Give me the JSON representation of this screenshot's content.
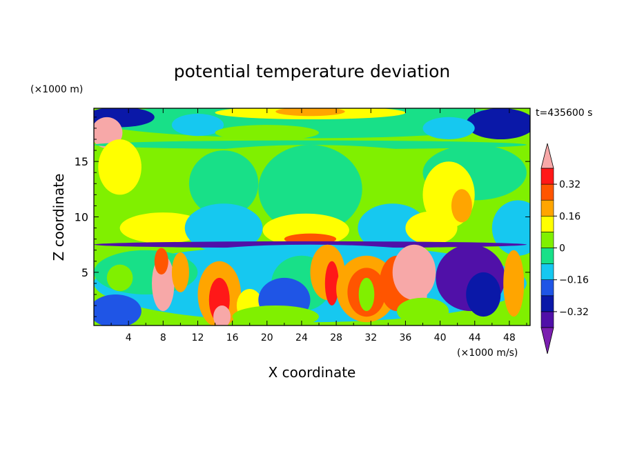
{
  "chart_data": {
    "type": "heatmap",
    "title": "potential temperature deviation",
    "xlabel": "X coordinate",
    "ylabel": "Z coordinate",
    "x_unit": "(×1000 m/s)",
    "y_unit": "(×1000 m)",
    "time_label": "t=435600 s",
    "xlim": [
      0,
      50.4
    ],
    "ylim": [
      0.2,
      19.8
    ],
    "x_ticks": [
      {
        "value": 4,
        "label": "4"
      },
      {
        "value": 8,
        "label": "8"
      },
      {
        "value": 12,
        "label": "12"
      },
      {
        "value": 16,
        "label": "16"
      },
      {
        "value": 20,
        "label": "20"
      },
      {
        "value": 24,
        "label": "24"
      },
      {
        "value": 28,
        "label": "28"
      },
      {
        "value": 32,
        "label": "32"
      },
      {
        "value": 36,
        "label": "36"
      },
      {
        "value": 40,
        "label": "40"
      },
      {
        "value": 44,
        "label": "44"
      },
      {
        "value": 48,
        "label": "48"
      }
    ],
    "y_ticks": [
      {
        "value": 5,
        "label": "5"
      },
      {
        "value": 10,
        "label": "10"
      },
      {
        "value": 15,
        "label": "15"
      }
    ],
    "colorbar": {
      "levels": [
        -0.4,
        -0.32,
        -0.24,
        -0.16,
        -0.08,
        0,
        0.08,
        0.16,
        0.24,
        0.32,
        0.4
      ],
      "colors": [
        "#7b1fb0",
        "#5010a8",
        "#0a18a8",
        "#1f55e6",
        "#16c8f0",
        "#18e088",
        "#80f000",
        "#ffff00",
        "#ffa500",
        "#ff5500",
        "#ff1818",
        "#f7a8a8"
      ],
      "tick_labels": [
        {
          "value": -0.32,
          "label": "−0.32"
        },
        {
          "value": -0.16,
          "label": "−0.16"
        },
        {
          "value": 0,
          "label": "0"
        },
        {
          "value": 0.16,
          "label": "0.16"
        },
        {
          "value": 0.32,
          "label": "0.32"
        }
      ]
    },
    "field_blobs": [
      {
        "x": 25,
        "z": 18.7,
        "rx": 25,
        "rz": 1.6,
        "v": -0.02
      },
      {
        "x": 25,
        "z": 19.4,
        "rx": 11,
        "rz": 0.6,
        "v": 0.14
      },
      {
        "x": 25,
        "z": 19.5,
        "rx": 4,
        "rz": 0.4,
        "v": 0.22
      },
      {
        "x": 3,
        "z": 19.0,
        "rx": 4,
        "rz": 0.9,
        "v": -0.25
      },
      {
        "x": 47,
        "z": 18.4,
        "rx": 4,
        "rz": 1.4,
        "v": -0.3
      },
      {
        "x": 41,
        "z": 18.0,
        "rx": 3,
        "rz": 1.0,
        "v": -0.15
      },
      {
        "x": 12,
        "z": 18.3,
        "rx": 3,
        "rz": 1.0,
        "v": -0.15
      },
      {
        "x": 20,
        "z": 17.6,
        "rx": 6,
        "rz": 0.7,
        "v": 0.06
      },
      {
        "x": 1.5,
        "z": 17.6,
        "rx": 1.8,
        "rz": 1.4,
        "v": 0.45
      },
      {
        "x": 25,
        "z": 16.5,
        "rx": 25,
        "rz": 0.4,
        "v": -0.08
      },
      {
        "x": 25,
        "z": 12,
        "rx": 25,
        "rz": 4.5,
        "v": 0.06
      },
      {
        "x": 25,
        "z": 12.5,
        "rx": 6,
        "rz": 4.0,
        "v": -0.02
      },
      {
        "x": 44,
        "z": 14,
        "rx": 6,
        "rz": 2.5,
        "v": -0.01
      },
      {
        "x": 15,
        "z": 13,
        "rx": 4,
        "rz": 3,
        "v": -0.01
      },
      {
        "x": 3,
        "z": 14.5,
        "rx": 2.5,
        "rz": 2.5,
        "v": 0.1
      },
      {
        "x": 41,
        "z": 12,
        "rx": 3,
        "rz": 3,
        "v": 0.12
      },
      {
        "x": 42.5,
        "z": 11,
        "rx": 1.2,
        "rz": 1.5,
        "v": 0.18
      },
      {
        "x": 8,
        "z": 9,
        "rx": 5,
        "rz": 1.4,
        "v": 0.14
      },
      {
        "x": 24.5,
        "z": 8.8,
        "rx": 5,
        "rz": 1.5,
        "v": 0.15
      },
      {
        "x": 25,
        "z": 8.0,
        "rx": 3,
        "rz": 0.5,
        "v": 0.24
      },
      {
        "x": 15,
        "z": 9,
        "rx": 4.5,
        "rz": 2.2,
        "v": -0.12
      },
      {
        "x": 34.5,
        "z": 9,
        "rx": 4,
        "rz": 2.2,
        "v": -0.12
      },
      {
        "x": 49,
        "z": 9,
        "rx": 3,
        "rz": 2.5,
        "v": -0.12
      },
      {
        "x": 39,
        "z": 9,
        "rx": 3,
        "rz": 1.5,
        "v": 0.12
      },
      {
        "x": 25,
        "z": 7.5,
        "rx": 25,
        "rz": 0.3,
        "v": -0.35
      },
      {
        "x": 25,
        "z": 4,
        "rx": 25,
        "rz": 3.5,
        "v": -0.12
      },
      {
        "x": 6,
        "z": 5,
        "rx": 6,
        "rz": 2,
        "v": -0.03
      },
      {
        "x": 3,
        "z": 4.5,
        "rx": 1.5,
        "rz": 1.2,
        "v": 0.04
      },
      {
        "x": 24,
        "z": 4,
        "rx": 3.5,
        "rz": 2.5,
        "v": -0.02
      },
      {
        "x": 8,
        "z": 4,
        "rx": 1.3,
        "rz": 2.5,
        "v": 0.45
      },
      {
        "x": 7.8,
        "z": 6,
        "rx": 0.8,
        "rz": 1.2,
        "v": 0.24
      },
      {
        "x": 10,
        "z": 5,
        "rx": 1,
        "rz": 1.8,
        "v": 0.22
      },
      {
        "x": 14.5,
        "z": 3,
        "rx": 2.5,
        "rz": 3,
        "v": 0.2
      },
      {
        "x": 14.5,
        "z": 2.5,
        "rx": 1.2,
        "rz": 2,
        "v": 0.34
      },
      {
        "x": 14.8,
        "z": 1,
        "rx": 1,
        "rz": 1,
        "v": 0.45
      },
      {
        "x": 18,
        "z": 2,
        "rx": 1.5,
        "rz": 1.5,
        "v": 0.1
      },
      {
        "x": 27,
        "z": 5,
        "rx": 2,
        "rz": 2.5,
        "v": 0.22
      },
      {
        "x": 27.5,
        "z": 4,
        "rx": 0.8,
        "rz": 2,
        "v": 0.34
      },
      {
        "x": 31.5,
        "z": 3.5,
        "rx": 3.5,
        "rz": 3,
        "v": 0.18
      },
      {
        "x": 31.5,
        "z": 3.2,
        "rx": 2.2,
        "rz": 2.2,
        "v": 0.28
      },
      {
        "x": 31.5,
        "z": 3.0,
        "rx": 0.9,
        "rz": 1.5,
        "v": 0.02
      },
      {
        "x": 35,
        "z": 4,
        "rx": 2,
        "rz": 2.5,
        "v": 0.24
      },
      {
        "x": 37,
        "z": 5,
        "rx": 2.5,
        "rz": 2.5,
        "v": 0.45
      },
      {
        "x": 37.5,
        "z": 3,
        "rx": 1,
        "rz": 1.5,
        "v": 0.45
      },
      {
        "x": 43.5,
        "z": 4.5,
        "rx": 4,
        "rz": 3,
        "v": -0.38
      },
      {
        "x": 45,
        "z": 3,
        "rx": 2,
        "rz": 2,
        "v": -0.3
      },
      {
        "x": 48.5,
        "z": 4,
        "rx": 1.2,
        "rz": 3,
        "v": 0.2
      },
      {
        "x": 22,
        "z": 2.5,
        "rx": 3,
        "rz": 2,
        "v": -0.2
      },
      {
        "x": 2.5,
        "z": 1.5,
        "rx": 3,
        "rz": 1.5,
        "v": -0.2
      },
      {
        "x": 38,
        "z": 1.5,
        "rx": 3,
        "rz": 1.2,
        "v": 0.06
      },
      {
        "x": 21,
        "z": 1,
        "rx": 5,
        "rz": 1,
        "v": 0.02
      }
    ]
  }
}
